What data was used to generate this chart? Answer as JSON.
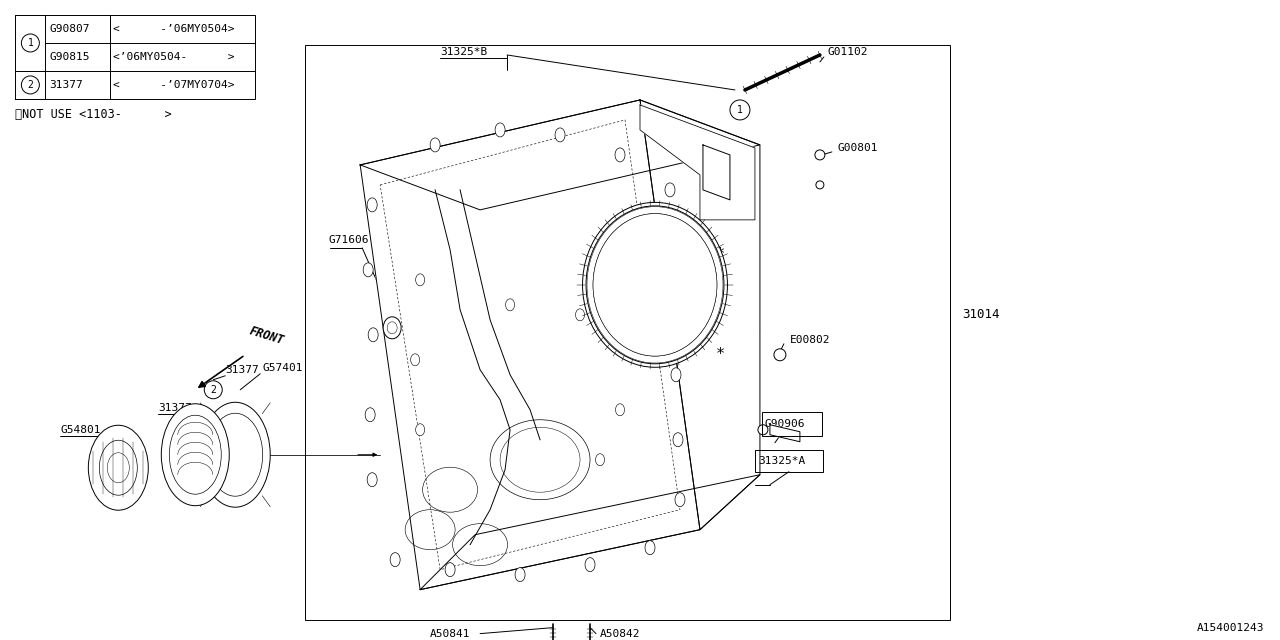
{
  "bg_color": "#ffffff",
  "line_color": "#000000",
  "fig_width": 12.8,
  "fig_height": 6.4,
  "diagram_id": "A154001243",
  "table_rows": [
    {
      "circle": "1",
      "part": "G90807",
      "note": "<      -’06MY0504>"
    },
    {
      "circle": "1",
      "part": "G90815",
      "note": "<’06MY0504-      >"
    },
    {
      "circle": "2",
      "part": "31377",
      "note": "<      -’07MY0704>"
    }
  ],
  "note_text": "※NOT USE <1103-      >",
  "front_label": "FRONT",
  "lw": 0.7
}
